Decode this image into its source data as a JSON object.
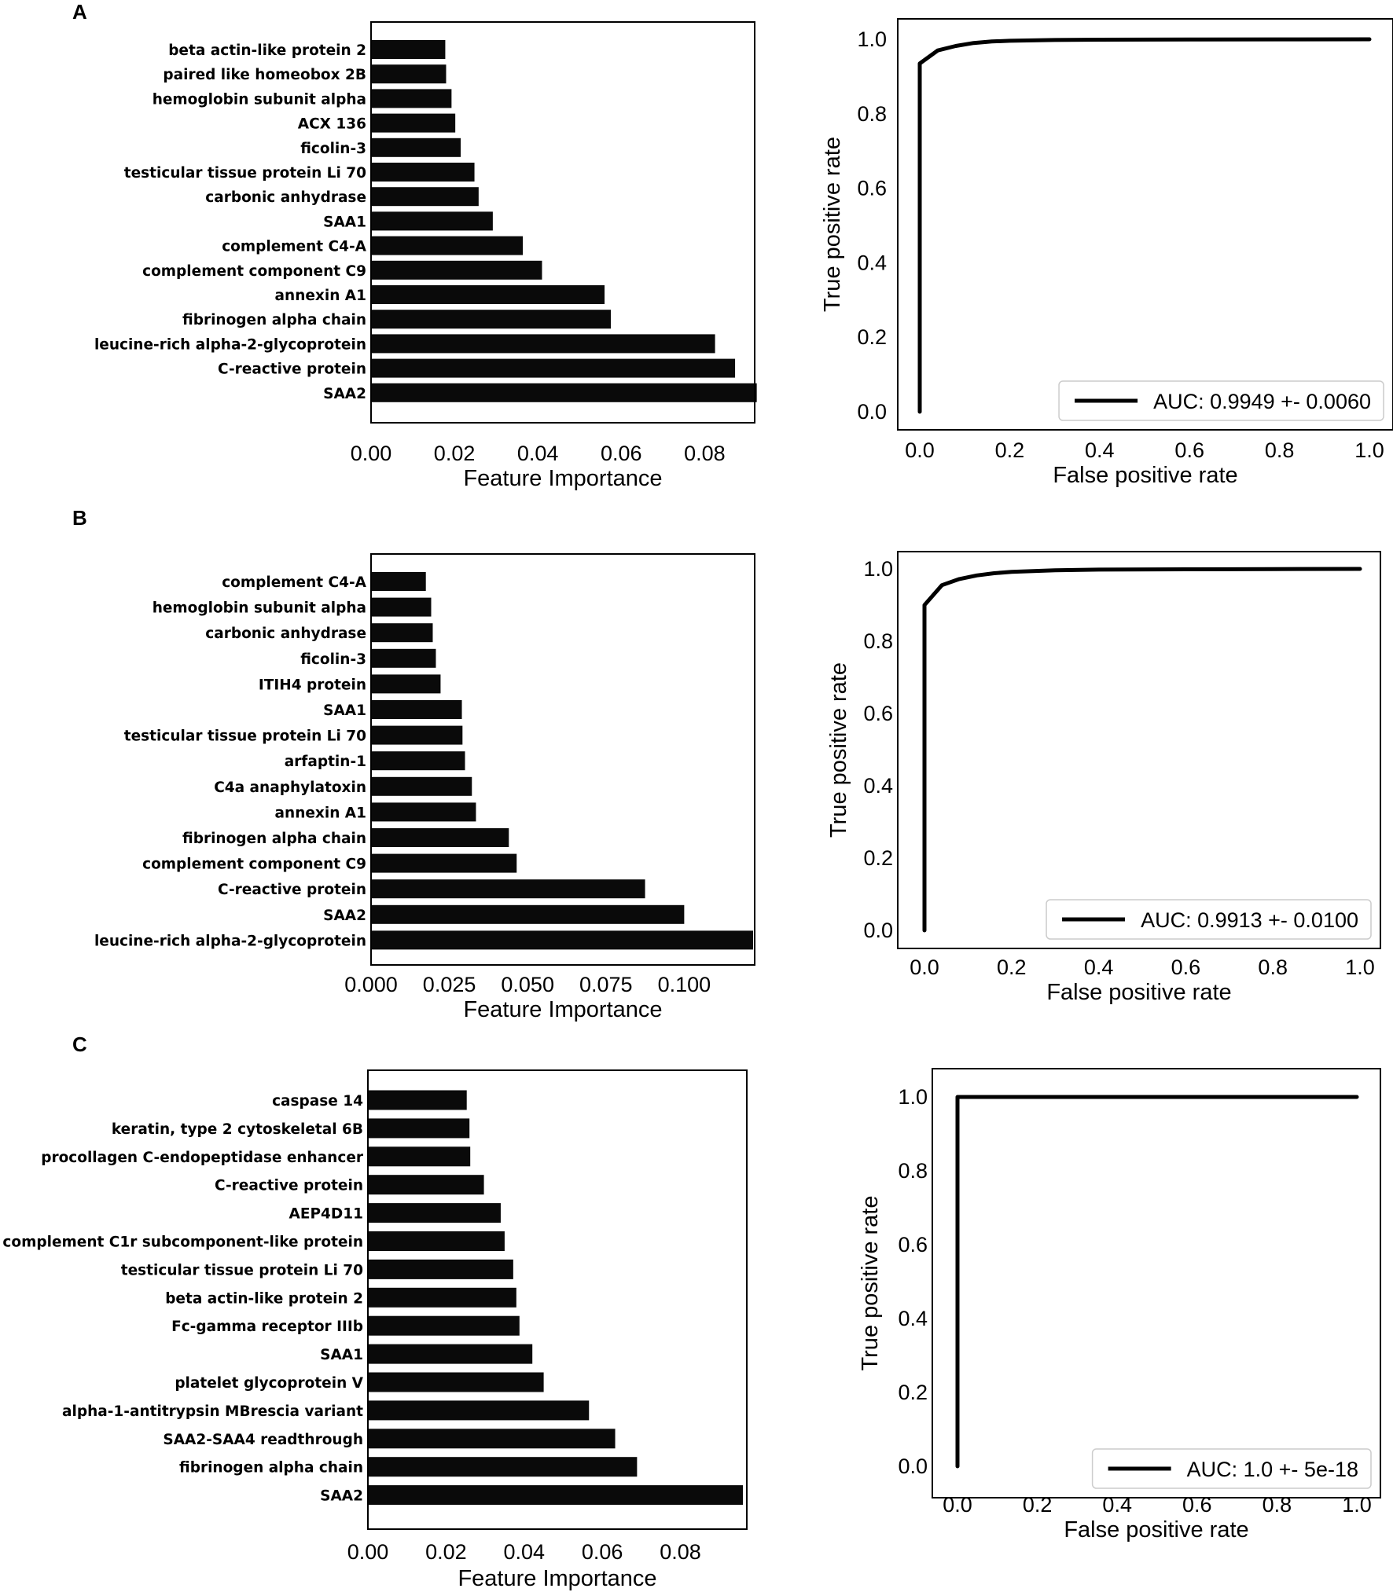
{
  "colors": {
    "bar": "#0a0a0a",
    "line": "#000000",
    "frame": "#000000",
    "background": "#ffffff"
  },
  "panels": [
    {
      "letter": "A",
      "importance": {
        "type": "bar",
        "orientation": "horizontal",
        "xlabel": "Feature Importance",
        "xlim": [
          0,
          0.092
        ],
        "xticks": [
          0,
          0.02,
          0.04,
          0.06,
          0.08
        ],
        "xtick_labels": [
          "0.00",
          "0.02",
          "0.04",
          "0.06",
          "0.08"
        ],
        "categories": [
          "beta actin-like protein 2",
          "paired like homeobox 2B",
          "hemoglobin subunit alpha",
          "ACX 136",
          "ficolin-3",
          "testicular tissue protein Li 70",
          "carbonic anhydrase",
          "SAA1",
          "complement C4-A",
          "complement component C9",
          "annexin A1",
          "fibrinogen alpha chain",
          "leucine-rich alpha-2-glycoprotein",
          "C-reactive protein",
          "SAA2"
        ],
        "values": [
          0.0178,
          0.018,
          0.0193,
          0.0202,
          0.0215,
          0.0248,
          0.0258,
          0.0292,
          0.0364,
          0.041,
          0.056,
          0.0575,
          0.0825,
          0.0873,
          0.0925
        ]
      },
      "roc": {
        "type": "line",
        "xlabel": "False positive rate",
        "ylabel": "True positive rate",
        "xlim": [
          0,
          1
        ],
        "ylim": [
          0,
          1
        ],
        "xtick_labels": [
          "0.0",
          "0.2",
          "0.4",
          "0.6",
          "0.8",
          "1.0"
        ],
        "ytick_labels": [
          "0.0",
          "0.2",
          "0.4",
          "0.6",
          "0.8",
          "1.0"
        ],
        "legend": "AUC: 0.9949 +- 0.0060",
        "legend_loc": "lower-right",
        "x": [
          0,
          0,
          0.04,
          0.08,
          0.12,
          0.16,
          0.2,
          0.3,
          0.4,
          0.6,
          0.8,
          1.0
        ],
        "y": [
          0,
          0.935,
          0.97,
          0.982,
          0.99,
          0.994,
          0.996,
          0.998,
          0.999,
          0.9995,
          0.9998,
          1.0
        ]
      }
    },
    {
      "letter": "B",
      "importance": {
        "type": "bar",
        "orientation": "horizontal",
        "xlabel": "Feature Importance",
        "xlim": [
          0,
          0.1225
        ],
        "xticks": [
          0,
          0.025,
          0.05,
          0.075,
          0.1
        ],
        "xtick_labels": [
          "0.000",
          "0.025",
          "0.050",
          "0.075",
          "0.100"
        ],
        "categories": [
          "complement C4-A",
          "hemoglobin subunit alpha",
          "carbonic anhydrase",
          "ficolin-3",
          "ITIH4 protein",
          "SAA1",
          "testicular tissue protein Li 70",
          "arfaptin-1",
          "C4a anaphylatoxin",
          "annexin A1",
          "fibrinogen alpha chain",
          "complement component C9",
          "C-reactive protein",
          "SAA2",
          "leucine-rich alpha-2-glycoprotein"
        ],
        "values": [
          0.0175,
          0.0192,
          0.0197,
          0.0207,
          0.0222,
          0.029,
          0.0292,
          0.03,
          0.0322,
          0.0335,
          0.044,
          0.0465,
          0.0875,
          0.1,
          0.122
        ]
      },
      "roc": {
        "type": "line",
        "xlabel": "False positive rate",
        "ylabel": "True positive rate",
        "xlim": [
          0,
          1
        ],
        "ylim": [
          0,
          1
        ],
        "xtick_labels": [
          "0.0",
          "0.2",
          "0.4",
          "0.6",
          "0.8",
          "1.0"
        ],
        "ytick_labels": [
          "0.0",
          "0.2",
          "0.4",
          "0.6",
          "0.8",
          "1.0"
        ],
        "legend": "AUC: 0.9913 +- 0.0100",
        "legend_loc": "lower-right",
        "x": [
          0,
          0,
          0.04,
          0.08,
          0.12,
          0.16,
          0.2,
          0.3,
          0.4,
          0.6,
          0.8,
          1.0
        ],
        "y": [
          0,
          0.9,
          0.955,
          0.972,
          0.982,
          0.988,
          0.992,
          0.996,
          0.998,
          0.999,
          0.9995,
          1.0
        ]
      }
    },
    {
      "letter": "C",
      "importance": {
        "type": "bar",
        "orientation": "horizontal",
        "xlabel": "Feature Importance",
        "xlim": [
          0,
          0.097
        ],
        "xticks": [
          0,
          0.02,
          0.04,
          0.06,
          0.08
        ],
        "xtick_labels": [
          "0.00",
          "0.02",
          "0.04",
          "0.06",
          "0.08"
        ],
        "categories": [
          "caspase 14",
          "keratin, type 2 cytoskeletal 6B",
          "procollagen C-endopeptidase enhancer",
          "C-reactive protein",
          "AEP4D11",
          "complement C1r subcomponent-like protein",
          "testicular tissue protein Li 70",
          "beta actin-like protein 2",
          "Fc-gamma receptor IIIb",
          "SAA1",
          "platelet glycoprotein V",
          "alpha-1-antitrypsin MBrescia variant",
          "SAA2-SAA4 readthrough",
          "fibrinogen alpha chain",
          "SAA2"
        ],
        "values": [
          0.0253,
          0.026,
          0.0262,
          0.0297,
          0.034,
          0.035,
          0.0372,
          0.038,
          0.0388,
          0.0421,
          0.045,
          0.0566,
          0.0633,
          0.0689,
          0.096
        ]
      },
      "roc": {
        "type": "line",
        "xlabel": "False positive rate",
        "ylabel": "True positive rate",
        "xlim": [
          0,
          1
        ],
        "ylim": [
          0,
          1
        ],
        "xtick_labels": [
          "0.0",
          "0.2",
          "0.4",
          "0.6",
          "0.8",
          "1.0"
        ],
        "ytick_labels": [
          "0.0",
          "0.2",
          "0.4",
          "0.6",
          "0.8",
          "1.0"
        ],
        "legend": "AUC: 1.0 +- 5e-18",
        "legend_loc": "lower-right",
        "x": [
          0,
          0,
          0.2,
          0.4,
          0.6,
          0.8,
          1.0
        ],
        "y": [
          0,
          1.0,
          1.0,
          1.0,
          1.0,
          1.0,
          1.0
        ]
      }
    }
  ]
}
